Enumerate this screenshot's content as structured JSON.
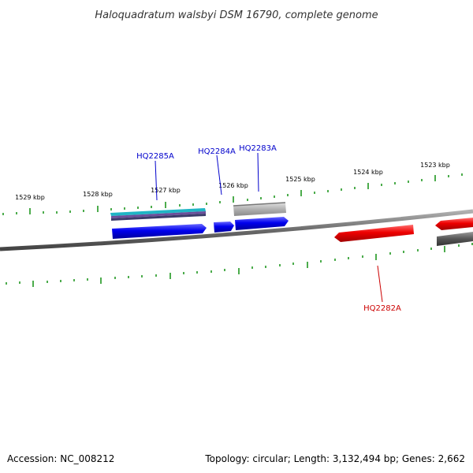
{
  "title": "Haloquadratum walsbyi DSM 16790, complete genome",
  "footer": {
    "accession": "Accession: NC_008212",
    "summary": "Topology: circular; Length: 3,132,494 bp; Genes: 2,662"
  },
  "colors": {
    "forward_gene": "#0000ee",
    "reverse_gene": "#ee0000",
    "backbone": "#777777",
    "tick": "#008800",
    "cyan_feature": "#20b8c8",
    "purple_feature": "#6a4a9a",
    "grey_feature": "#aaaaaa",
    "dark_grey_feature": "#555555"
  },
  "kbp_labels": [
    {
      "text": "1529 kbp"
    },
    {
      "text": "1528 kbp"
    },
    {
      "text": "1527 kbp"
    },
    {
      "text": "1526 kbp"
    },
    {
      "text": "1525 kbp"
    },
    {
      "text": "1524 kbp"
    },
    {
      "text": "1523 kbp"
    }
  ],
  "gene_labels": {
    "hq2285a": "HQ2285A",
    "hq2284a": "HQ2284A",
    "hq2283a": "HQ2283A",
    "hq2282a": "HQ2282A"
  }
}
